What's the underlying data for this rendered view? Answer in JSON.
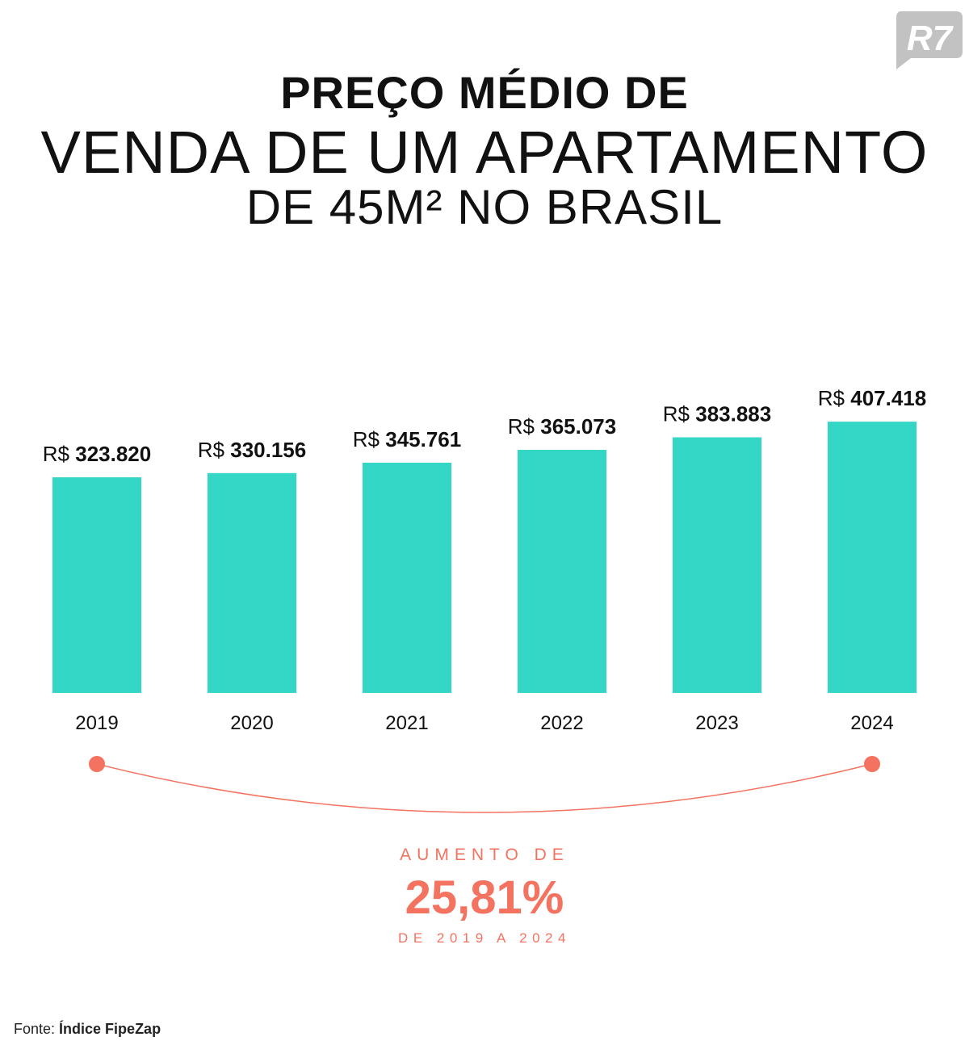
{
  "header": {
    "line1": "PREÇO MÉDIO DE",
    "line2": "VENDA DE UM APARTAMENTO",
    "line3": "DE 45M² NO BRASIL"
  },
  "logo_text": "R7",
  "chart_data": {
    "type": "bar",
    "title": "PREÇO MÉDIO DE VENDA DE UM APARTAMENTO DE 45M² NO BRASIL",
    "categories": [
      "2019",
      "2020",
      "2021",
      "2022",
      "2023",
      "2024"
    ],
    "values": [
      323820,
      330156,
      345761,
      365073,
      383883,
      407418
    ],
    "value_labels": [
      "323.820",
      "330.156",
      "345.761",
      "365.073",
      "383.883",
      "407.418"
    ],
    "currency_prefix": "R$",
    "xlabel": "",
    "ylabel": "",
    "ylim": [
      0,
      450000
    ],
    "grid": false,
    "bar_color": "#34d6c6",
    "accent_color": "#f47260"
  },
  "summary": {
    "label": "AUMENTO DE",
    "value": "25,81%",
    "period": "DE 2019 A 2024"
  },
  "source": {
    "label": "Fonte:",
    "value": "Índice FipeZap"
  }
}
